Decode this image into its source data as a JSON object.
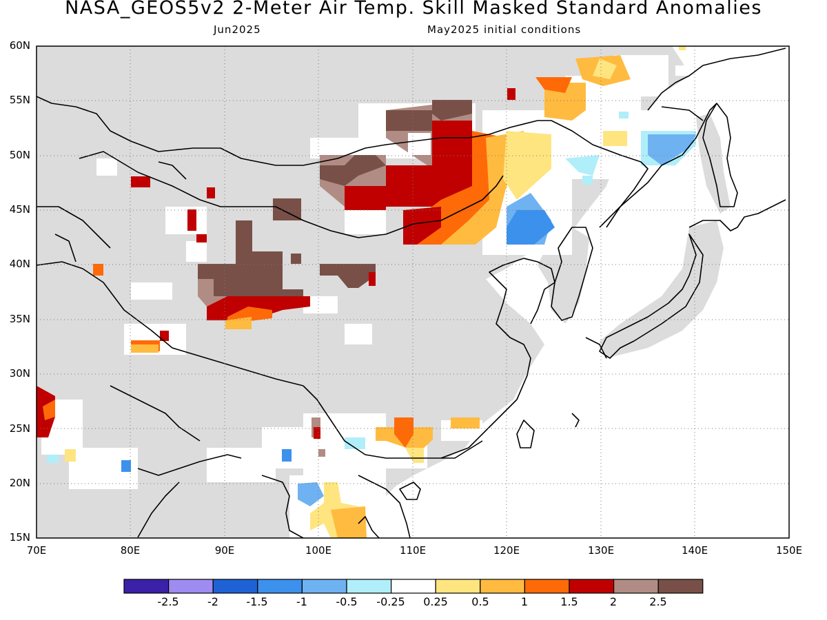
{
  "title": "NASA_GEOS5v2 2-Meter Air Temp. Skill Masked Standard Anomalies",
  "subtitle_left": "Jun2025",
  "subtitle_right": "May2025 initial conditions",
  "lat_labels": [
    "60N",
    "55N",
    "50N",
    "45N",
    "40N",
    "35N",
    "30N",
    "25N",
    "20N",
    "15N"
  ],
  "lon_labels": [
    "70E",
    "80E",
    "90E",
    "100E",
    "110E",
    "120E",
    "130E",
    "140E",
    "150E"
  ],
  "colorbar": {
    "colors": [
      "#3b20a8",
      "#9f8cf0",
      "#1f62d6",
      "#3c91ec",
      "#6fb2f2",
      "#b0eefa",
      "#ffffff",
      "#ffe580",
      "#ffbb40",
      "#ff6a08",
      "#c00000",
      "#b18c85",
      "#785048"
    ],
    "labels": [
      "-2.5",
      "-2",
      "-1.5",
      "-1",
      "-0.5",
      "-0.25",
      "0.25",
      "0.5",
      "1",
      "1.5",
      "2",
      "2.5"
    ]
  },
  "colors": {
    "ocean": "#ffffff",
    "not_skillful": "#dcdcdc",
    "coast": "#000000",
    "grid": "#777777"
  }
}
